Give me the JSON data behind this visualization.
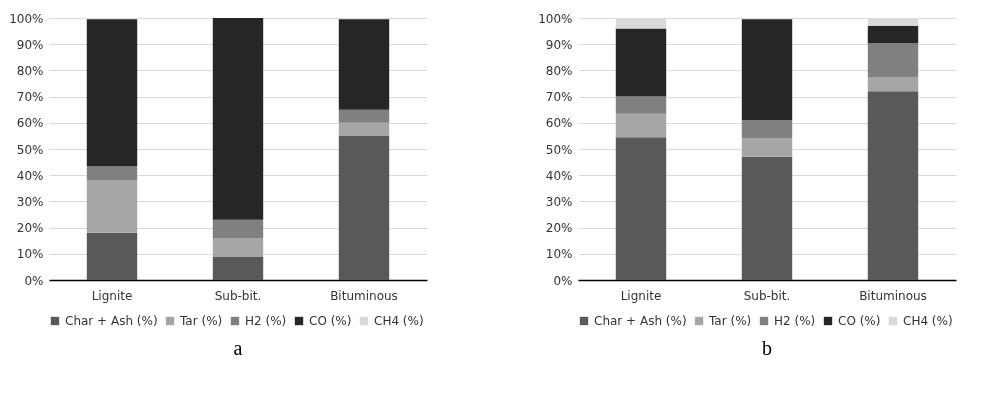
{
  "chart_data": [
    {
      "type": "bar",
      "stacked": true,
      "categories": [
        "Lignite",
        "Sub-bit.",
        "Bituminous"
      ],
      "series": [
        {
          "name": "Char + Ash (%)",
          "color": "#595959",
          "values": [
            18,
            9,
            55
          ]
        },
        {
          "name": "Tar (%)",
          "color": "#a6a6a6",
          "values": [
            20,
            7,
            5
          ]
        },
        {
          "name": "H2 (%)",
          "color": "#808080",
          "values": [
            5.5,
            7,
            5
          ]
        },
        {
          "name": "CO (%)",
          "color": "#262626",
          "values": [
            56,
            77,
            34.5
          ]
        },
        {
          "name": "CH4 (%)",
          "color": "#d9d9d9",
          "values": [
            null,
            0,
            null
          ]
        }
      ],
      "ylim": [
        0,
        100
      ],
      "yticks": [
        {
          "value": 0,
          "label": "0%"
        },
        {
          "value": 10,
          "label": "10%"
        },
        {
          "value": 20,
          "label": "20%"
        },
        {
          "value": 30,
          "label": "30%"
        },
        {
          "value": 40,
          "label": "40%"
        },
        {
          "value": 50,
          "label": "50%"
        },
        {
          "value": 60,
          "label": "60%"
        },
        {
          "value": 70,
          "label": "70%"
        },
        {
          "value": 80,
          "label": "80%"
        },
        {
          "value": 90,
          "label": "90%"
        },
        {
          "value": 100,
          "label": "100%"
        }
      ],
      "grid": "y",
      "legend": "bottom",
      "annotations": [
        "a"
      ]
    },
    {
      "type": "bar",
      "stacked": true,
      "categories": [
        "Lignite",
        "Sub-bit.",
        "Bituminous"
      ],
      "series": [
        {
          "name": "Char + Ash (%)",
          "color": "#595959",
          "values": [
            54.5,
            47,
            72
          ]
        },
        {
          "name": "Tar (%)",
          "color": "#a6a6a6",
          "values": [
            9,
            7,
            5.5
          ]
        },
        {
          "name": "H2 (%)",
          "color": "#808080",
          "values": [
            6.5,
            7,
            13
          ]
        },
        {
          "name": "CO (%)",
          "color": "#262626",
          "values": [
            26,
            38.5,
            6.5
          ]
        },
        {
          "name": "CH4 (%)",
          "color": "#d9d9d9",
          "values": [
            4,
            null,
            3
          ]
        }
      ],
      "ylim": [
        0,
        100
      ],
      "yticks": [
        {
          "value": 0,
          "label": "0%"
        },
        {
          "value": 10,
          "label": "10%"
        },
        {
          "value": 20,
          "label": "20%"
        },
        {
          "value": 30,
          "label": "30%"
        },
        {
          "value": 40,
          "label": "40%"
        },
        {
          "value": 50,
          "label": "50%"
        },
        {
          "value": 60,
          "label": "60%"
        },
        {
          "value": 70,
          "label": "70%"
        },
        {
          "value": 80,
          "label": "80%"
        },
        {
          "value": 90,
          "label": "90%"
        },
        {
          "value": 100,
          "label": "100%"
        }
      ],
      "grid": "y",
      "legend": "bottom",
      "annotations": [
        "b"
      ]
    }
  ]
}
